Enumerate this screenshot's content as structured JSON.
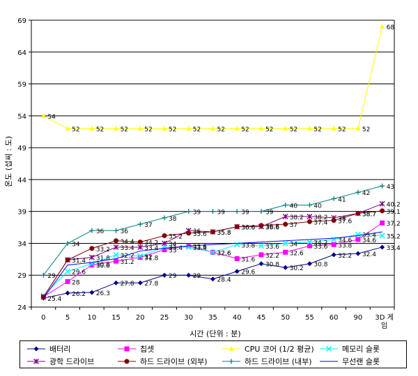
{
  "chart_data": {
    "type": "line",
    "title": "",
    "xlabel": "시간 (단위 : 분)",
    "ylabel": "온도 (섭씨 : 도)",
    "ylim": [
      24,
      69
    ],
    "yticks": [
      24,
      29,
      34,
      39,
      44,
      49,
      54,
      59,
      64,
      69
    ],
    "grid": "horizontal",
    "legend_position": "bottom",
    "categories": [
      "0",
      "5",
      "10",
      "15",
      "20",
      "25",
      "30",
      "35",
      "40",
      "45",
      "50",
      "55",
      "60",
      "90",
      "3D 게임"
    ],
    "series": [
      {
        "name": "배터리",
        "color": "#000080",
        "marker": "diamond",
        "values": [
          25.4,
          26.2,
          26.3,
          27.8,
          27.8,
          29,
          29,
          28.4,
          29.6,
          30.8,
          30.2,
          30.8,
          32.2,
          32.4,
          33.4
        ]
      },
      {
        "name": "칩셋",
        "color": "#FF00FF",
        "marker": "square",
        "values": [
          25.6,
          28,
          30.6,
          31.2,
          31.8,
          33,
          33.6,
          32.6,
          31.6,
          32.2,
          32.6,
          33.6,
          33.8,
          34.6,
          37.2
        ]
      },
      {
        "name": "CPU 코어 (1/2 평균)",
        "color": "#FFFF00",
        "marker": "triangle",
        "values": [
          54,
          52,
          52,
          52,
          52,
          52,
          52,
          52,
          52,
          52,
          52,
          52,
          52,
          52,
          68
        ]
      },
      {
        "name": "메모리 슬롯",
        "color": "#00FFFF",
        "marker": "x",
        "values": [
          25.8,
          29.6,
          30.8,
          32.2,
          32,
          33.4,
          33.4,
          32.6,
          33.8,
          33.6,
          34,
          34.2,
          34.6,
          35.4,
          35.2
        ]
      },
      {
        "name": "광학 드라이브",
        "color": "#800080",
        "marker": "star",
        "values": [
          25.6,
          31.4,
          31.8,
          33.4,
          33.4,
          34,
          36,
          35.8,
          36.6,
          36.6,
          38.2,
          38.2,
          38,
          38.7,
          40.2
        ]
      },
      {
        "name": "하드 드라이브 (외부)",
        "color": "#800000",
        "marker": "circle",
        "values": [
          25.6,
          31.4,
          33.2,
          34.4,
          34.2,
          35.2,
          35.6,
          35.8,
          36.6,
          36.8,
          37,
          37.4,
          37.6,
          38.7,
          39.1
        ]
      },
      {
        "name": "하드 드라이브 (내부)",
        "color": "#008080",
        "marker": "plus",
        "values": [
          29,
          34,
          36,
          36,
          37,
          38,
          39,
          39,
          39,
          39,
          40,
          40,
          41,
          42,
          43
        ]
      },
      {
        "name": "무선랜 슬롯",
        "color": "#0000FF",
        "marker": "none",
        "values": [
          25.4,
          30.6,
          31,
          31.6,
          32.8,
          33.2,
          33.6,
          33.8,
          34,
          34.2,
          34.4,
          34.6,
          34.8,
          35.2,
          35.8
        ]
      }
    ],
    "data_labels": [
      {
        "series": 0,
        "text": [
          "25.4",
          "26.2",
          "26.3",
          "27.8",
          "27.8",
          "29",
          "29",
          "28.4",
          "29.6",
          "30.8",
          "30.2",
          "30.8",
          "32.2",
          "32.4",
          "33.4"
        ]
      },
      {
        "series": 1,
        "text": [
          "",
          "28",
          "30.6",
          "31.2",
          "31.8",
          "33",
          "33.6",
          "32.6",
          "31.6",
          "32.2",
          "32.6",
          "33.6",
          "33.8",
          "34.6",
          "37.2"
        ]
      },
      {
        "series": 2,
        "text": [
          "54",
          "52",
          "52",
          "52",
          "52",
          "52",
          "52",
          "52",
          "52",
          "52",
          "52",
          "52",
          "52",
          "52",
          "68"
        ]
      },
      {
        "series": 3,
        "text": [
          "",
          "29.6",
          "30.8",
          "32.2",
          "32",
          "33.4",
          "33.4",
          "32.6",
          "33.8",
          "33.6",
          "34",
          "34.2",
          "34.6",
          "35.4",
          "35.2"
        ]
      },
      {
        "series": 4,
        "text": [
          "",
          "31.4",
          "31.8",
          "33.4",
          "33.4",
          "34",
          "36",
          "35.8",
          "36.6",
          "36.6",
          "38.2",
          "38.2",
          "38",
          "38.7",
          "40.2"
        ]
      },
      {
        "series": 5,
        "text": [
          "",
          "",
          "33.2",
          "34.4",
          "34.2",
          "35.2",
          "35.6",
          "35.8",
          "36.6",
          "36.8",
          "37",
          "37.4",
          "37.6",
          "38.7",
          "39.1"
        ]
      },
      {
        "series": 6,
        "text": [
          "29",
          "34",
          "36",
          "36",
          "37",
          "38",
          "39",
          "39",
          "39",
          "39",
          "40",
          "40",
          "41",
          "42",
          "43"
        ]
      }
    ]
  }
}
